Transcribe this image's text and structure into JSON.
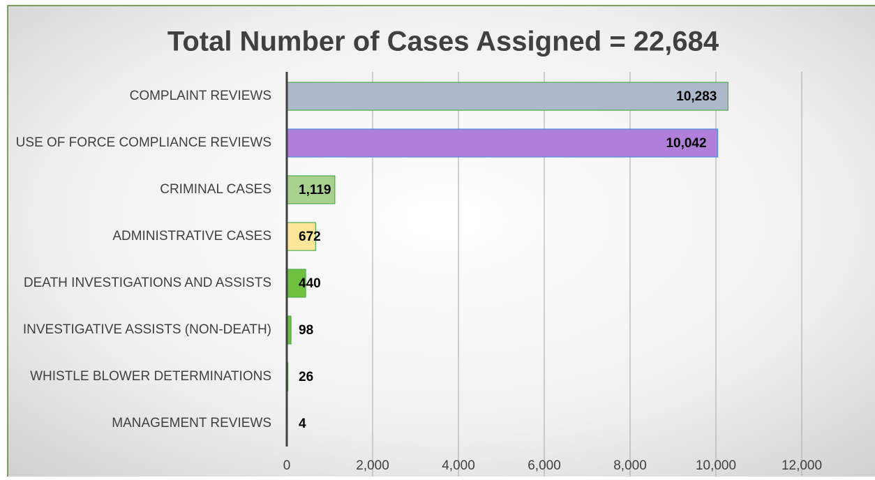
{
  "chart_data": {
    "type": "bar",
    "orientation": "horizontal",
    "title": "Total Number of Cases Assigned = 22,684",
    "categories": [
      "COMPLAINT REVIEWS",
      "USE OF FORCE COMPLIANCE REVIEWS",
      "CRIMINAL CASES",
      "ADMINISTRATIVE CASES",
      "DEATH INVESTIGATIONS AND ASSISTS",
      "INVESTIGATIVE ASSISTS (NON-DEATH)",
      "WHISTLE BLOWER DETERMINATIONS",
      "MANAGEMENT REVIEWS"
    ],
    "values": [
      10283,
      10042,
      1119,
      672,
      440,
      98,
      26,
      4
    ],
    "value_labels": [
      "10,283",
      "10,042",
      "1,119",
      "672",
      "440",
      "98",
      "26",
      "4"
    ],
    "colors": [
      "#adb9ca",
      "#b07fd9",
      "#a9d18e",
      "#ffe699",
      "#70c040",
      "#70c040",
      "#70c040",
      "#70c040"
    ],
    "xlim": [
      0,
      13700
    ],
    "xticks": [
      0,
      {
        "value": 2000,
        "label": "2,000"
      },
      {
        "value": 4000,
        "label": "4,000"
      },
      {
        "value": 6000,
        "label": "6,000"
      },
      {
        "value": 8000,
        "label": "8,000"
      },
      {
        "value": 10000,
        "label": "10,000"
      },
      {
        "value": 12000,
        "label": "12,000"
      }
    ],
    "grid": true
  }
}
